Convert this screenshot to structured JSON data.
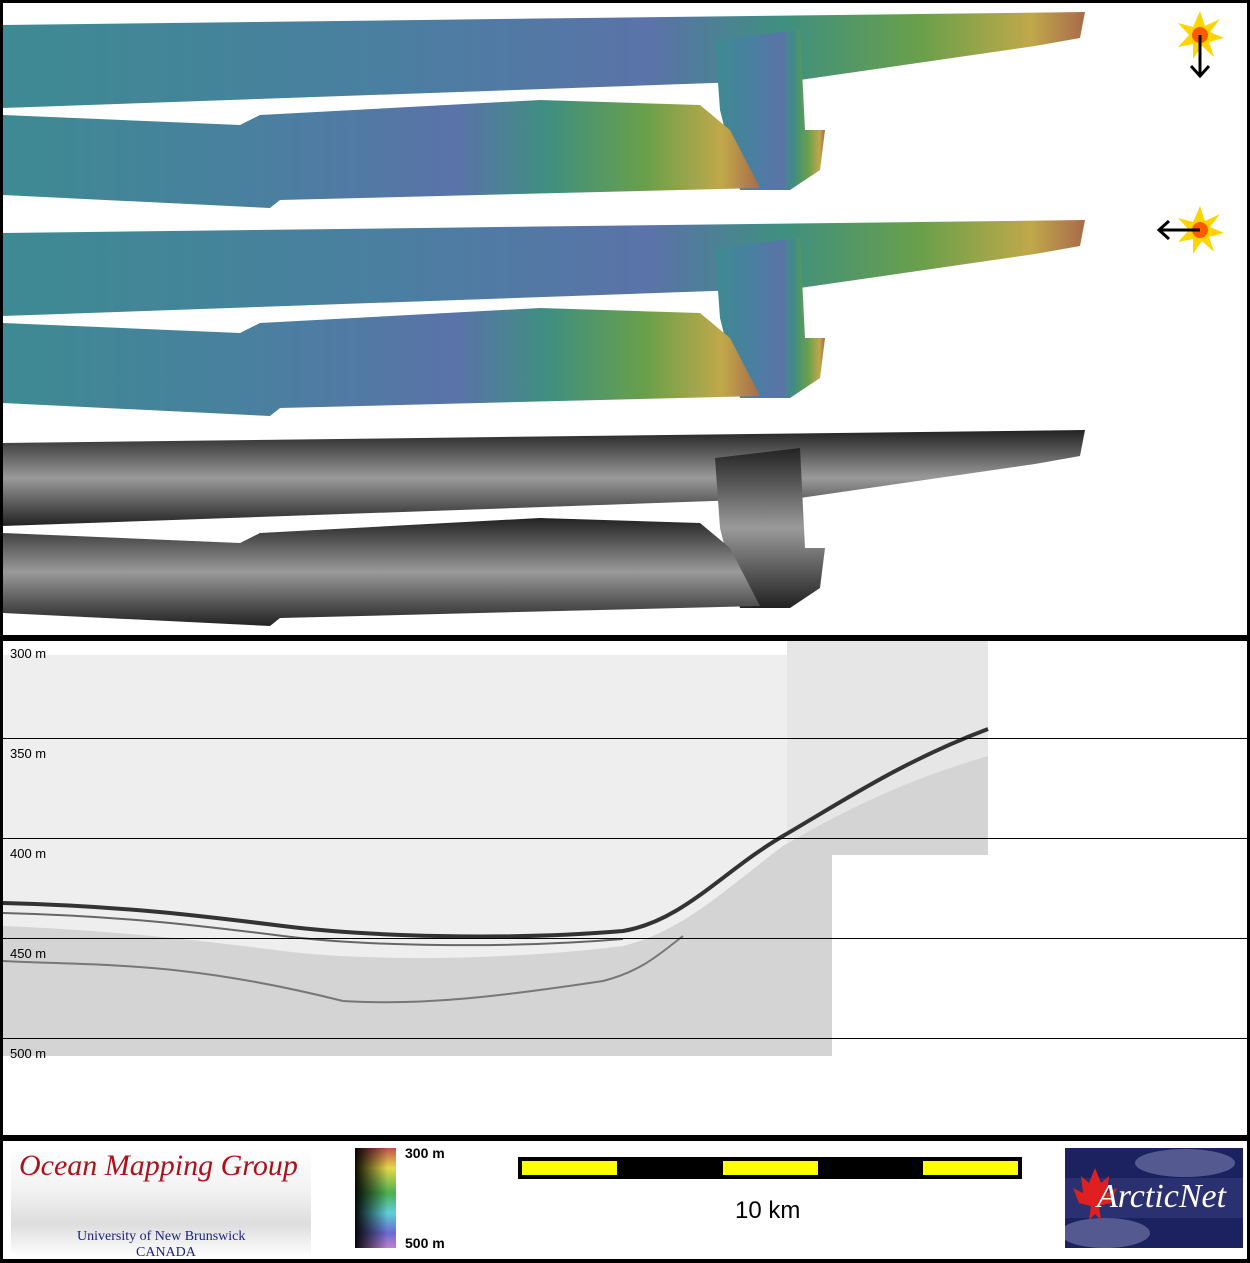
{
  "map": {
    "illumination": [
      {
        "icon": "sun-icon",
        "direction": "from north (arrow down)"
      },
      {
        "icon": "sun-icon",
        "direction": "from east (arrow left)"
      }
    ],
    "panels": [
      "sun-illuminated bathymetry",
      "sun-illuminated bathymetry",
      "backscatter"
    ]
  },
  "profile": {
    "depth_labels": [
      "300 m",
      "350 m",
      "400 m",
      "450 m",
      "500 m"
    ]
  },
  "legend": {
    "logo_left": {
      "title": "Ocean Mapping Group",
      "line1": "University of New Brunswick",
      "line2": "CANADA"
    },
    "colorbar": {
      "top_label": "300 m",
      "bottom_label": "500 m"
    },
    "scalebar": {
      "label": "10 km",
      "fill_color": "#ffff00"
    },
    "logo_right": {
      "text": "ArcticNet"
    }
  }
}
